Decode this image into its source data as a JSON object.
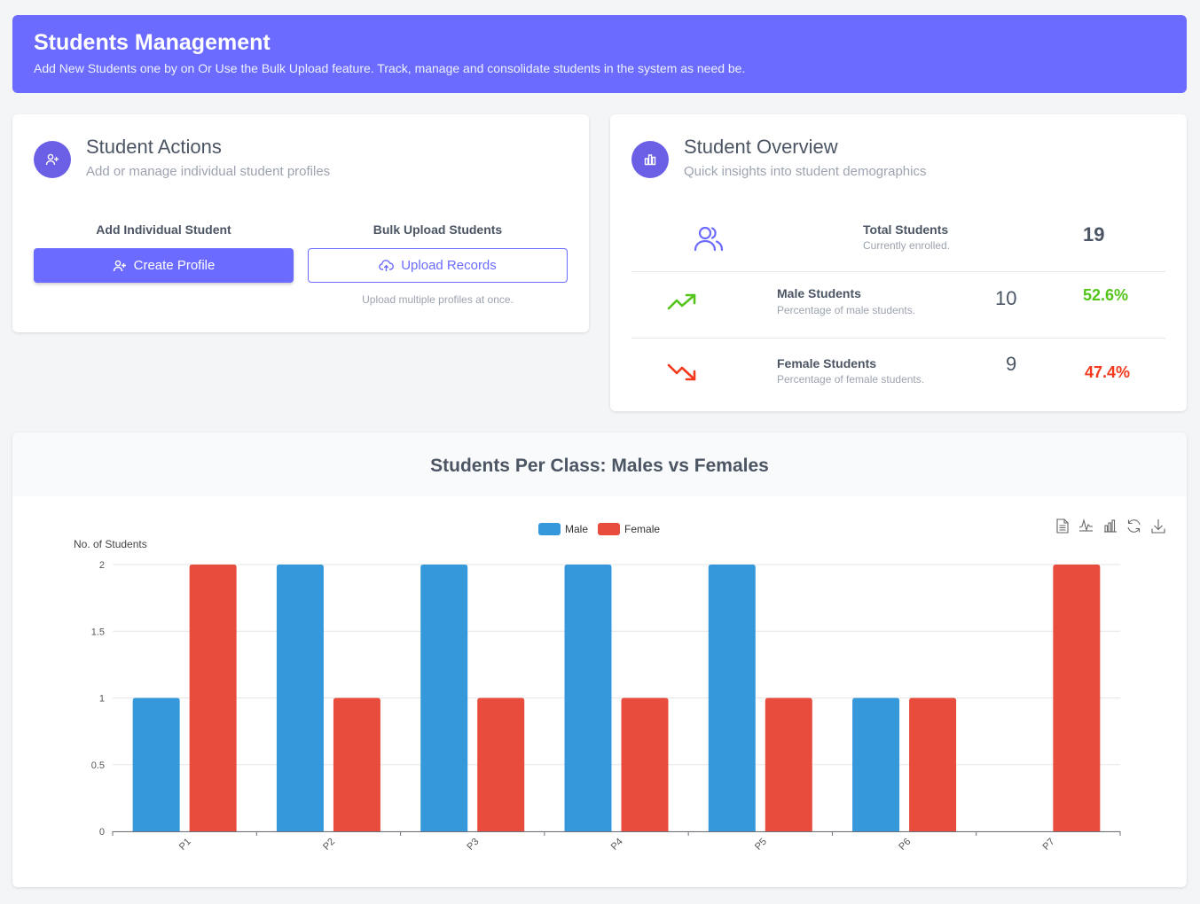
{
  "header": {
    "title": "Students Management",
    "subtitle": "Add New Students one by on Or Use the Bulk Upload feature. Track, manage and consolidate students in the system as need be."
  },
  "actions": {
    "title": "Student Actions",
    "subtitle": "Add or manage individual student profiles",
    "add_label": "Add Individual Student",
    "create_button": "Create Profile",
    "bulk_label": "Bulk Upload Students",
    "upload_button": "Upload Records",
    "upload_hint": "Upload multiple profiles at once."
  },
  "overview": {
    "title": "Student Overview",
    "subtitle": "Quick insights into student demographics",
    "total": {
      "title": "Total Students",
      "sub": "Currently enrolled.",
      "value": "19"
    },
    "male": {
      "title": "Male Students",
      "sub": "Percentage of male students.",
      "value": "10",
      "pct": "52.6%"
    },
    "female": {
      "title": "Female Students",
      "sub": "Percentage of female students.",
      "value": "9",
      "pct": "47.4%"
    }
  },
  "colors": {
    "accent": "#6b6bff",
    "male": "#3498db",
    "female": "#e74c3c",
    "positive": "#52c41a",
    "negative": "#f5391c"
  },
  "toolbox_icons": [
    "data-view-icon",
    "line-chart-icon",
    "bar-chart-icon",
    "restore-icon",
    "download-icon"
  ],
  "chart_data": {
    "type": "bar",
    "title": "Students Per Class: Males vs Females",
    "ylabel": "No. of Students",
    "xlabel": "",
    "categories": [
      "P1",
      "P2",
      "P3",
      "P4",
      "P5",
      "P6",
      "P7"
    ],
    "series": [
      {
        "name": "Male",
        "values": [
          1,
          2,
          2,
          2,
          2,
          1,
          0
        ]
      },
      {
        "name": "Female",
        "values": [
          2,
          1,
          1,
          1,
          1,
          1,
          2
        ]
      }
    ],
    "ylim": [
      0,
      2
    ],
    "yticks": [
      "0",
      "0.5",
      "1",
      "1.5",
      "2"
    ],
    "legend": "top-center",
    "grid": true
  }
}
